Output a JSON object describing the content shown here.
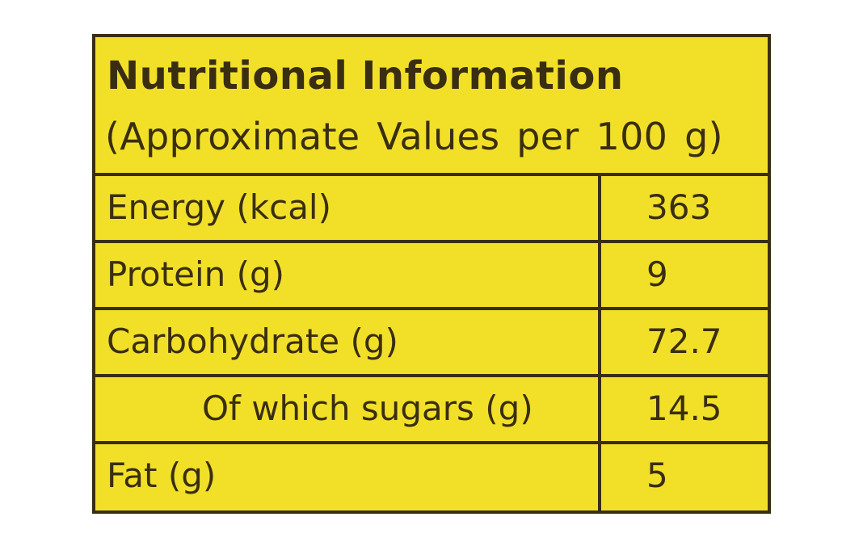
{
  "label": {
    "title": "Nutritional Information",
    "subtitle": "(Approximate Values per 100 g)"
  },
  "nutrients": [
    {
      "name": "Energy (kcal)",
      "value": "363",
      "indent": false
    },
    {
      "name": "Protein (g)",
      "value": "9",
      "indent": false
    },
    {
      "name": "Carbohydrate (g)",
      "value": "72.7",
      "indent": false
    },
    {
      "name": "Of which sugars (g)",
      "value": "14.5",
      "indent": true
    },
    {
      "name": "Fat (g)",
      "value": "5",
      "indent": false
    }
  ],
  "colors": {
    "background": "#f2e028",
    "ink": "#3a2e12"
  }
}
